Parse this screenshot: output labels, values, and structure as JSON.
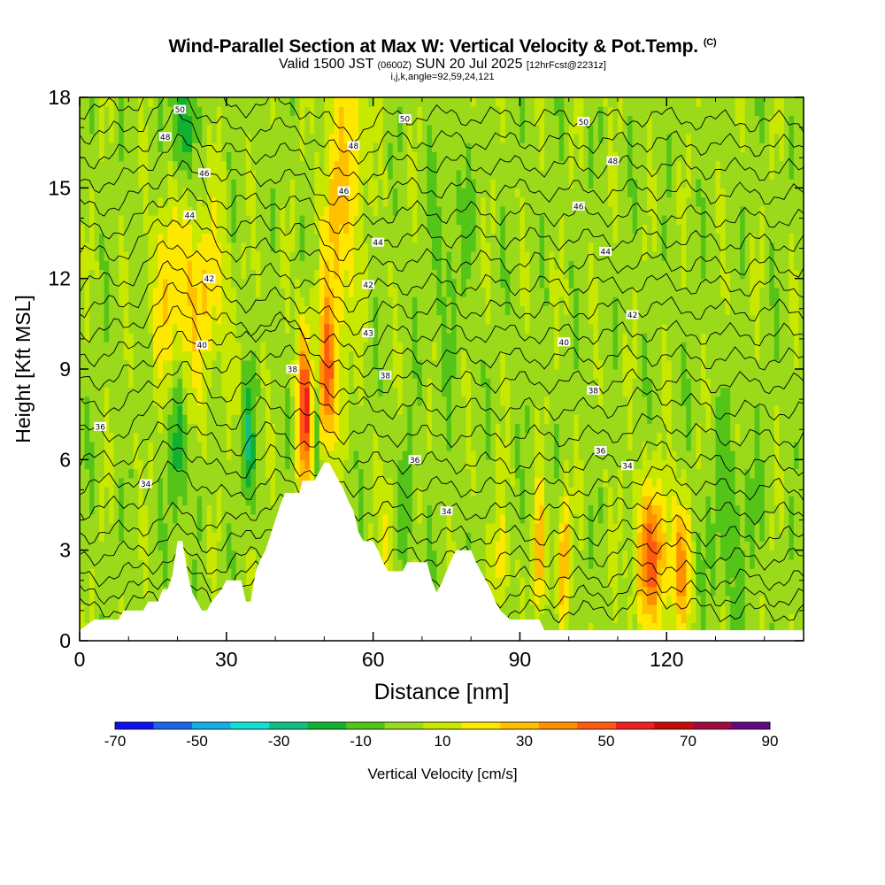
{
  "title": {
    "main": "Wind-Parallel Section at Max W: Vertical Velocity & Pot.Temp.",
    "copyright": "(C)",
    "valid_a": "Valid 1500 JST",
    "valid_b": "(0600Z)",
    "valid_c": "SUN 20 Jul 2025",
    "valid_d": "[12hrFcst@2231z]",
    "indices": "i,j,k,angle=92,59,24,121"
  },
  "chart_data": {
    "type": "heatmap",
    "xlabel": "Distance [nm]",
    "ylabel": "Height [Kft MSL]",
    "xlim": [
      0,
      148
    ],
    "ylim": [
      0,
      18
    ],
    "x_ticks": [
      0,
      30,
      60,
      90,
      120
    ],
    "y_ticks": [
      0,
      3,
      6,
      9,
      12,
      15,
      18
    ],
    "colorbar": {
      "label": "Vertical Velocity [cm/s]",
      "levels": [
        -70,
        -60,
        -50,
        -40,
        -30,
        -20,
        -10,
        0,
        10,
        20,
        30,
        40,
        50,
        60,
        70,
        80,
        90
      ],
      "tick_labels": [
        "-70",
        "-50",
        "-30",
        "-10",
        "10",
        "30",
        "50",
        "70",
        "90"
      ],
      "colors": [
        "#1010ee",
        "#1a66e6",
        "#10b0ea",
        "#10e0d0",
        "#10c080",
        "#12b030",
        "#55c418",
        "#9ada1a",
        "#c8e800",
        "#ffe800",
        "#ffc000",
        "#ff9000",
        "#ff5a10",
        "#ee2020",
        "#c80a0a",
        "#a00a40",
        "#600a80"
      ]
    },
    "terrain": [
      [
        0,
        0.35
      ],
      [
        3,
        0.7
      ],
      [
        8,
        0.7
      ],
      [
        9,
        1.0
      ],
      [
        13,
        1.0
      ],
      [
        14,
        1.3
      ],
      [
        16,
        1.3
      ],
      [
        17,
        1.7
      ],
      [
        18,
        1.7
      ],
      [
        19,
        2.2
      ],
      [
        20,
        3.3
      ],
      [
        21,
        3.3
      ],
      [
        22,
        2.3
      ],
      [
        23,
        1.6
      ],
      [
        24,
        1.3
      ],
      [
        25,
        1.0
      ],
      [
        26,
        1.0
      ],
      [
        27,
        1.3
      ],
      [
        29,
        1.7
      ],
      [
        30,
        2.0
      ],
      [
        33,
        2.0
      ],
      [
        34,
        1.3
      ],
      [
        35,
        1.3
      ],
      [
        36,
        2.3
      ],
      [
        37,
        2.7
      ],
      [
        38,
        3.0
      ],
      [
        39,
        3.5
      ],
      [
        40,
        4.0
      ],
      [
        41,
        4.5
      ],
      [
        42,
        4.9
      ],
      [
        45,
        4.9
      ],
      [
        45.5,
        5.3
      ],
      [
        48,
        5.3
      ],
      [
        49,
        5.6
      ],
      [
        50,
        5.9
      ],
      [
        51,
        5.9
      ],
      [
        52,
        5.6
      ],
      [
        53,
        5.3
      ],
      [
        54,
        5.0
      ],
      [
        55,
        4.6
      ],
      [
        56,
        4.3
      ],
      [
        57,
        3.6
      ],
      [
        58,
        3.3
      ],
      [
        60,
        3.3
      ],
      [
        61,
        3.0
      ],
      [
        62,
        2.6
      ],
      [
        63,
        2.3
      ],
      [
        66,
        2.3
      ],
      [
        67,
        2.6
      ],
      [
        71,
        2.6
      ],
      [
        72,
        2.0
      ],
      [
        73,
        1.6
      ],
      [
        74,
        1.9
      ],
      [
        75,
        2.3
      ],
      [
        76,
        2.7
      ],
      [
        77,
        3.0
      ],
      [
        80,
        3.0
      ],
      [
        81,
        2.6
      ],
      [
        82,
        2.3
      ],
      [
        84,
        1.7
      ],
      [
        85,
        1.3
      ],
      [
        86,
        1.0
      ],
      [
        88,
        0.7
      ],
      [
        94,
        0.7
      ],
      [
        95,
        0.35
      ],
      [
        148,
        0.35
      ]
    ],
    "theta_contours": [
      {
        "level": "34",
        "label_at": [
          13.5,
          5.2
        ]
      },
      {
        "level": "34",
        "label_at": [
          75,
          4.3
        ]
      },
      {
        "level": "34",
        "label_at": [
          112,
          5.8
        ]
      },
      {
        "level": "36",
        "label_at": [
          4.2,
          7.1
        ]
      },
      {
        "level": "36",
        "label_at": [
          68.5,
          6.0
        ]
      },
      {
        "level": "36",
        "label_at": [
          106.5,
          6.3
        ]
      },
      {
        "level": "38",
        "label_at": [
          43.5,
          9.0
        ]
      },
      {
        "level": "38",
        "label_at": [
          62.5,
          8.8
        ]
      },
      {
        "level": "38",
        "label_at": [
          105,
          8.3
        ]
      },
      {
        "level": "40",
        "label_at": [
          25,
          9.8
        ]
      },
      {
        "level": "40",
        "label_at": [
          99,
          9.9
        ]
      },
      {
        "level": "42",
        "label_at": [
          26.5,
          12.0
        ]
      },
      {
        "level": "42",
        "label_at": [
          59,
          11.8
        ]
      },
      {
        "level": "42",
        "label_at": [
          113,
          10.8
        ]
      },
      {
        "level": "43",
        "label_at": [
          59,
          10.2
        ]
      },
      {
        "level": "44",
        "label_at": [
          22.5,
          14.1
        ]
      },
      {
        "level": "44",
        "label_at": [
          61,
          13.2
        ]
      },
      {
        "level": "44",
        "label_at": [
          107.5,
          12.9
        ]
      },
      {
        "level": "46",
        "label_at": [
          25.5,
          15.5
        ]
      },
      {
        "level": "46",
        "label_at": [
          54,
          14.9
        ]
      },
      {
        "level": "46",
        "label_at": [
          102,
          14.4
        ]
      },
      {
        "level": "48",
        "label_at": [
          17.5,
          16.7
        ]
      },
      {
        "level": "48",
        "label_at": [
          56,
          16.4
        ]
      },
      {
        "level": "48",
        "label_at": [
          109,
          15.9
        ]
      },
      {
        "level": "50",
        "label_at": [
          20.5,
          17.6
        ]
      },
      {
        "level": "50",
        "label_at": [
          66.5,
          17.3
        ]
      },
      {
        "level": "50",
        "label_at": [
          103,
          17.2
        ]
      }
    ]
  }
}
